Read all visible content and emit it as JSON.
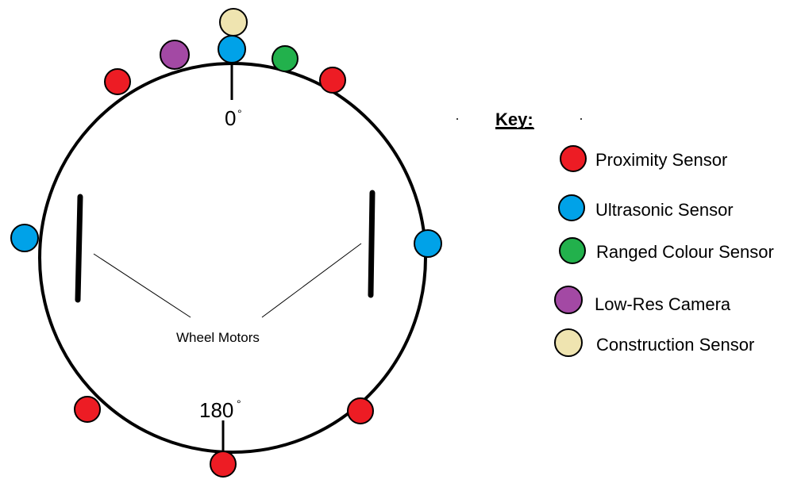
{
  "colors": {
    "proximity": "#ed1c24",
    "ultrasonic": "#00a2e8",
    "ranged_colour": "#22b14c",
    "camera": "#a349a4",
    "construction": "#efe4b0"
  },
  "angles": {
    "top": "0",
    "bottom": "180",
    "degree_symbol": "°"
  },
  "motors": {
    "label": "Wheel Motors"
  },
  "key": {
    "title": "Key:",
    "items": [
      {
        "label": "Proximity Sensor",
        "color": "#ed1c24"
      },
      {
        "label": "Ultrasonic Sensor",
        "color": "#00a2e8"
      },
      {
        "label": "Ranged Colour Sensor",
        "color": "#22b14c"
      },
      {
        "label": "Low-Res Camera",
        "color": "#a349a4"
      },
      {
        "label": "Construction Sensor",
        "color": "#efe4b0"
      }
    ]
  }
}
